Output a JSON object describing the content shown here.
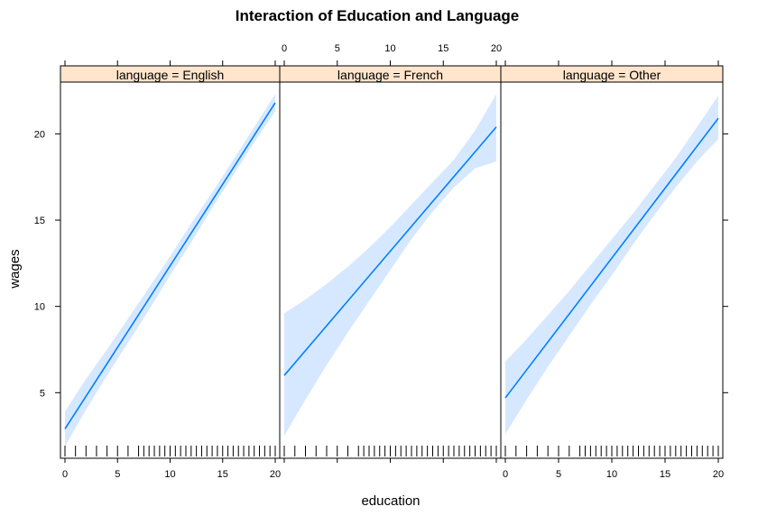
{
  "chart_data": {
    "type": "line",
    "title": "Interaction of Education and Language",
    "xlabel": "education",
    "ylabel": "wages",
    "xlim": [
      0,
      20
    ],
    "ylim": [
      1.2,
      23
    ],
    "xticks": [
      0,
      5,
      10,
      15,
      20
    ],
    "yticks": [
      5,
      10,
      15,
      20
    ],
    "panels": [
      {
        "label": "language = English",
        "x": [
          0,
          20
        ],
        "y": [
          2.9,
          21.8
        ],
        "band_x": [
          0,
          2,
          4,
          6,
          8,
          10,
          12,
          14,
          16,
          18,
          20
        ],
        "band_lower": [
          1.9,
          4.0,
          6.0,
          7.9,
          9.8,
          11.8,
          13.7,
          15.7,
          17.6,
          19.5,
          21.3
        ],
        "band_upper": [
          3.9,
          5.8,
          7.5,
          9.3,
          11.1,
          12.9,
          14.8,
          16.6,
          18.5,
          20.4,
          22.3
        ]
      },
      {
        "label": "language = French",
        "x": [
          0,
          20
        ],
        "y": [
          6.0,
          20.4
        ],
        "band_x": [
          0,
          2,
          4,
          6,
          8,
          10,
          12,
          14,
          16,
          18,
          20
        ],
        "band_lower": [
          2.5,
          4.6,
          6.6,
          8.5,
          10.3,
          12.1,
          13.9,
          15.5,
          16.9,
          18.0,
          18.4
        ],
        "band_upper": [
          9.6,
          10.4,
          11.3,
          12.3,
          13.4,
          14.6,
          15.9,
          17.2,
          18.5,
          20.2,
          22.3
        ]
      },
      {
        "label": "language = Other",
        "x": [
          0,
          20
        ],
        "y": [
          4.7,
          20.9
        ],
        "band_x": [
          0,
          2,
          4,
          6,
          8,
          10,
          12,
          14,
          16,
          18,
          20
        ],
        "band_lower": [
          2.6,
          4.6,
          6.5,
          8.3,
          10.1,
          11.8,
          13.6,
          15.3,
          16.9,
          18.4,
          19.7
        ],
        "band_upper": [
          6.8,
          8.1,
          9.5,
          10.9,
          12.4,
          13.9,
          15.4,
          17.0,
          18.6,
          20.4,
          22.2
        ]
      }
    ],
    "rug_x": [
      0,
      1,
      2,
      3,
      4,
      5,
      6,
      7,
      7.5,
      8,
      8.5,
      9,
      9.5,
      10,
      10.5,
      11,
      11.5,
      12,
      12.5,
      13,
      13.5,
      14,
      14.5,
      15,
      15.5,
      16,
      16.5,
      17,
      17.5,
      18,
      18.5,
      19,
      19.5,
      20
    ],
    "colors": {
      "line": "#0080ff",
      "band": "#d6e8ff",
      "strip": "#ffe5cc",
      "strip_line": "#000000"
    },
    "grid": false
  }
}
